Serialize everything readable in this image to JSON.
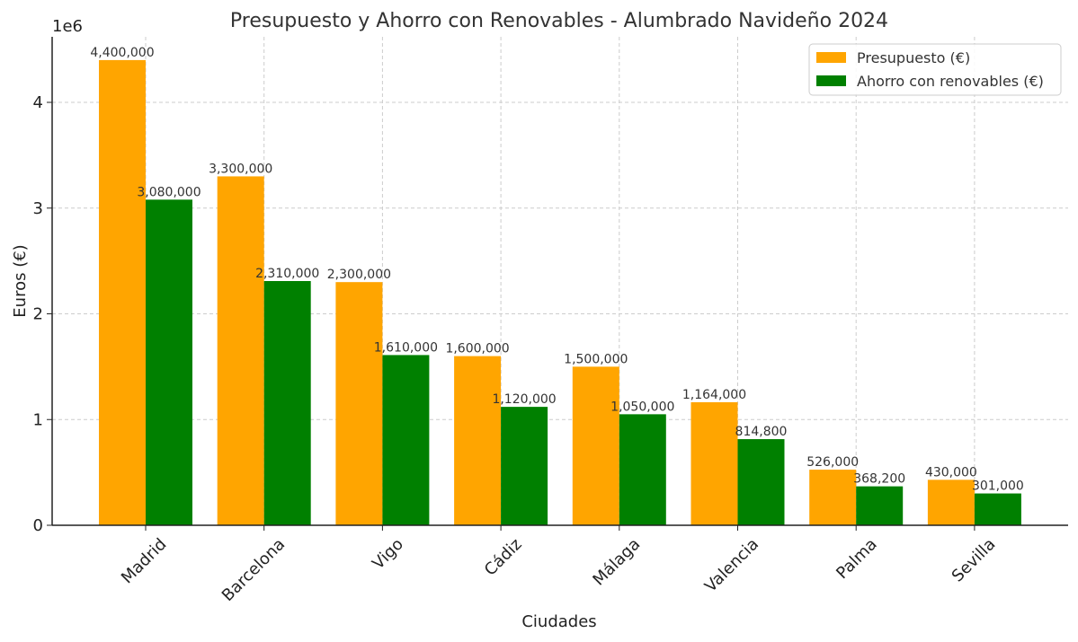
{
  "chart_data": {
    "type": "bar",
    "title": "Presupuesto y Ahorro con Renovables - Alumbrado Navideño 2024",
    "xlabel": "Ciudades",
    "ylabel": "Euros (€)",
    "y_offset_label": "1e6",
    "categories": [
      "Madrid",
      "Barcelona",
      "Vigo",
      "Cádiz",
      "Málaga",
      "Valencia",
      "Palma",
      "Sevilla"
    ],
    "series": [
      {
        "name": "Presupuesto (€)",
        "color": "#FFA500",
        "values": [
          4400000,
          3300000,
          2300000,
          1600000,
          1500000,
          1164000,
          526000,
          430000
        ],
        "labels": [
          "4,400,000",
          "3,300,000",
          "2,300,000",
          "1,600,000",
          "1,500,000",
          "1,164,000",
          "526,000",
          "430,000"
        ]
      },
      {
        "name": "Ahorro con renovables (€)",
        "color": "#008000",
        "values": [
          3080000,
          2310000,
          1610000,
          1120000,
          1050000,
          814800,
          368200,
          301000
        ],
        "labels": [
          "3,080,000",
          "2,310,000",
          "1,610,000",
          "1,120,000",
          "1,050,000",
          "814,800",
          "368,200",
          "301,000"
        ]
      }
    ],
    "yticks": [
      0,
      1,
      2,
      3,
      4
    ],
    "ylim": [
      0,
      4620000
    ],
    "grid": true,
    "legend_position": "top-right"
  }
}
